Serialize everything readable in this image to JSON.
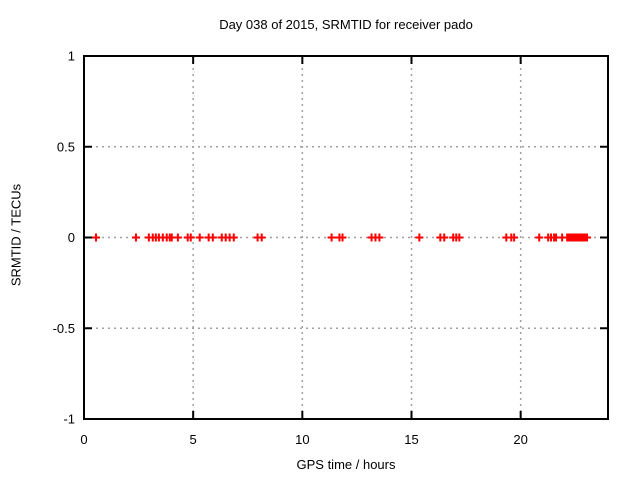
{
  "chart_data": {
    "type": "scatter",
    "title": "Day 038 of 2015, SRMTID for receiver pado",
    "xlabel": "GPS time / hours",
    "ylabel": "SRMTID / TECUs",
    "xlim": [
      0,
      24
    ],
    "ylim": [
      -1,
      1
    ],
    "xticks": [
      0,
      5,
      10,
      15,
      20
    ],
    "yticks": [
      -1,
      -0.5,
      0,
      0.5,
      1
    ],
    "grid": true,
    "legend_position": "none",
    "marker": "plus",
    "marker_color": "#ff0000",
    "grid_color": "#a0a0a0",
    "border_color": "#000000",
    "background_color": "#ffffff",
    "series": [
      {
        "name": "SRMTID",
        "y_const": 0,
        "x": [
          0.55,
          2.38,
          2.97,
          3.15,
          3.29,
          3.43,
          3.61,
          3.79,
          3.93,
          4.02,
          4.3,
          4.75,
          4.89,
          5.3,
          5.71,
          5.9,
          6.31,
          6.49,
          6.67,
          6.86,
          7.95,
          8.14,
          11.34,
          11.7,
          11.84,
          13.17,
          13.35,
          13.53,
          15.36,
          16.32,
          16.5,
          16.91,
          17.05,
          17.19,
          19.34,
          19.57,
          19.7,
          20.85,
          21.26,
          21.39,
          21.53,
          21.62,
          21.9,
          22.13,
          22.18,
          22.22,
          22.27,
          22.31,
          22.36,
          22.41,
          22.45,
          22.5,
          22.54,
          22.59,
          22.63,
          22.68,
          22.72,
          22.77,
          22.82,
          22.86,
          22.91,
          22.95,
          23.0,
          23.04
        ]
      }
    ]
  }
}
